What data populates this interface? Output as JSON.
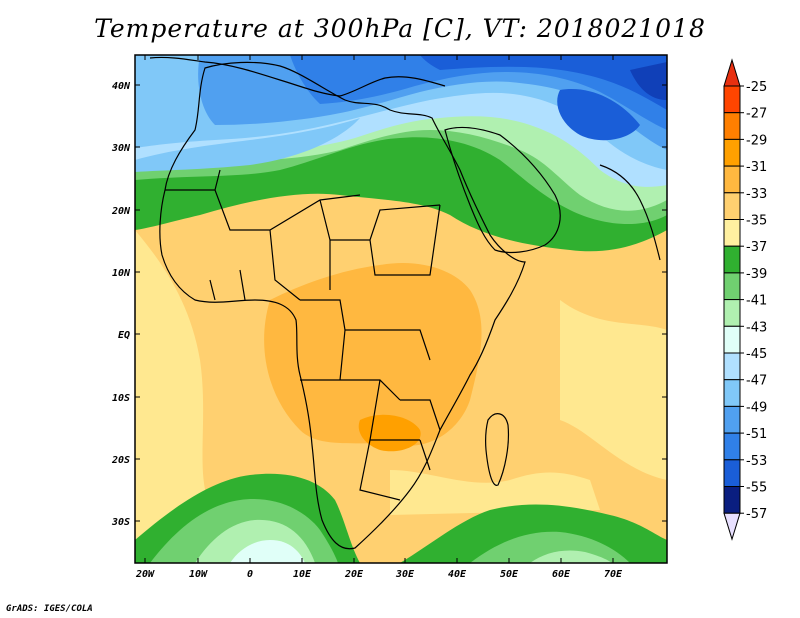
{
  "title": "Temperature at 300hPa [C], VT: 2018021018",
  "credit": "GrADS: IGES/COLA",
  "lat_labels": [
    "40N",
    "30N",
    "20N",
    "10N",
    "EQ",
    "10S",
    "20S",
    "30S"
  ],
  "lon_labels": [
    "20W",
    "10W",
    "0",
    "10E",
    "20E",
    "30E",
    "40E",
    "50E",
    "60E",
    "70E"
  ],
  "colorbar": {
    "labels": [
      "-25",
      "-27",
      "-29",
      "-31",
      "-33",
      "-35",
      "-37",
      "-39",
      "-41",
      "-43",
      "-45",
      "-47",
      "-49",
      "-51",
      "-53",
      "-55",
      "-57"
    ],
    "colors": [
      "#ff4500",
      "#ff7f00",
      "#ffa000",
      "#ffb840",
      "#ffd070",
      "#fff0a0",
      "#30b030",
      "#70d070",
      "#b0f0b0",
      "#e0fff8",
      "#b0e0ff",
      "#80c8f8",
      "#50a0f0",
      "#3080e8",
      "#1a5ed8",
      "#1040b8",
      "#0a1e80"
    ],
    "top_arrow_color": "#e83010",
    "bottom_arrow_color": "#e8e0ff"
  },
  "map_colors": {
    "land_border": "#000000",
    "palette_warm": [
      "#ffe890",
      "#ffd070",
      "#ffb840"
    ],
    "palette_cold": [
      "#30b030",
      "#70d070",
      "#b0f0b0",
      "#e0fff8",
      "#b0e0ff",
      "#80c8f8",
      "#50a0f0",
      "#3080e8",
      "#1a5ed8"
    ]
  }
}
